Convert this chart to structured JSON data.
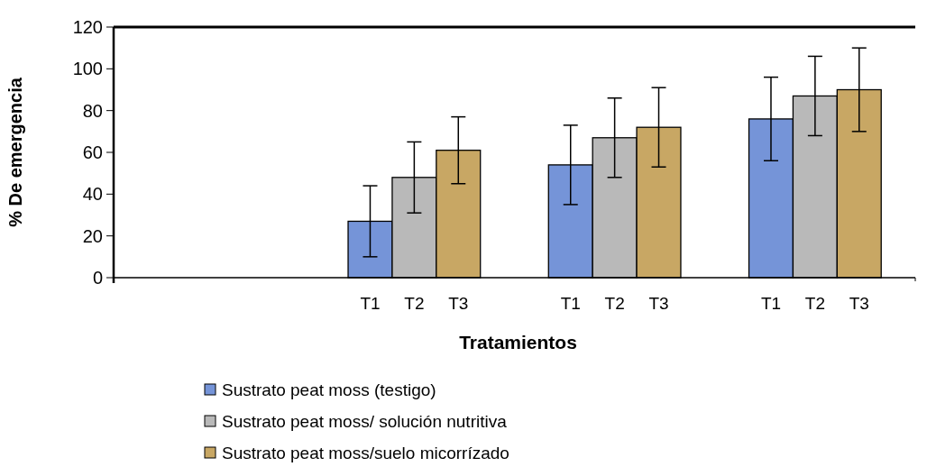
{
  "chart_data": {
    "type": "bar",
    "xlabel": "Tratamientos",
    "ylabel": "% De emergencia",
    "categories": [
      null,
      null,
      null,
      "T1",
      "T2",
      "T3",
      "T1",
      "T2",
      "T3",
      "T1",
      "T2",
      "T3"
    ],
    "series": [
      {
        "name": "Sustrato peat moss (testigo)",
        "color": "#7594d8",
        "values": [
          null,
          null,
          null,
          27,
          null,
          null,
          54,
          null,
          null,
          76,
          null,
          null
        ],
        "errors": [
          null,
          null,
          null,
          17,
          null,
          null,
          19,
          null,
          null,
          20,
          null,
          null
        ]
      },
      {
        "name": "Sustrato peat moss/ solución nutritiva",
        "color": "#b9b9b9",
        "values": [
          null,
          null,
          null,
          null,
          48,
          null,
          null,
          67,
          null,
          null,
          87,
          null
        ],
        "errors": [
          null,
          null,
          null,
          null,
          17,
          null,
          null,
          19,
          null,
          null,
          19,
          null
        ]
      },
      {
        "name": "Sustrato peat moss/suelo micorrízado",
        "color": "#c8a764",
        "values": [
          null,
          null,
          null,
          null,
          null,
          61,
          null,
          null,
          72,
          null,
          null,
          90
        ],
        "errors": [
          null,
          null,
          null,
          null,
          null,
          16,
          null,
          null,
          19,
          null,
          null,
          20
        ]
      }
    ],
    "ylim": [
      0,
      120
    ],
    "yticks": [
      0,
      20,
      40,
      60,
      80,
      100,
      120
    ],
    "grid": false,
    "legend": "bottom"
  }
}
